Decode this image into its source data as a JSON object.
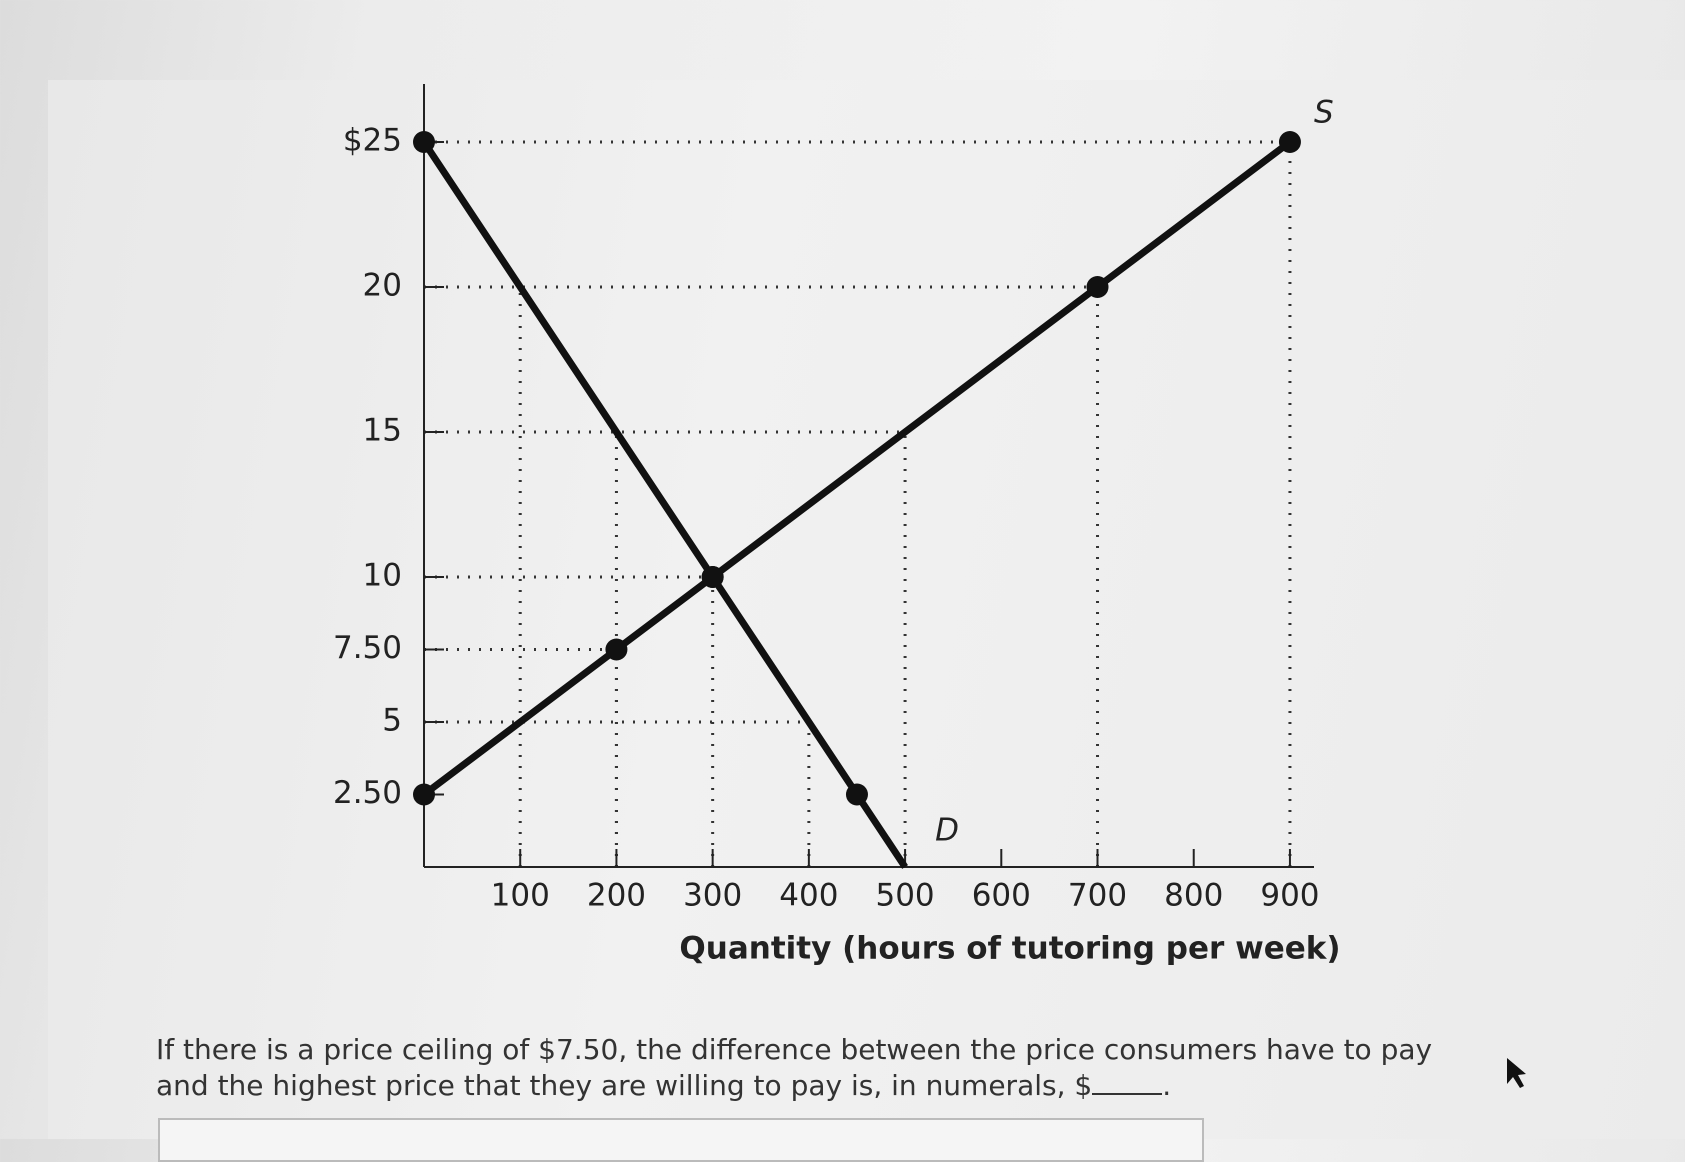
{
  "chart_data": {
    "type": "line",
    "xlabel": "Quantity (hours of tutoring per week)",
    "xlim": [
      0,
      925
    ],
    "ylim": [
      0,
      27
    ],
    "xticks": [
      100,
      200,
      300,
      400,
      500,
      600,
      700,
      800,
      900
    ],
    "yticks": [
      {
        "value": 25,
        "label": "$25"
      },
      20,
      15,
      10,
      {
        "value": 7.5,
        "label": "7.50"
      },
      5,
      {
        "value": 2.5,
        "label": "2.50"
      }
    ],
    "series": [
      {
        "name": "D",
        "color": "#111111",
        "x": [
          0,
          300,
          450,
          500
        ],
        "values": [
          25,
          10,
          2.5,
          0
        ],
        "markers": [
          true,
          true,
          true,
          false
        ]
      },
      {
        "name": "S",
        "color": "#111111",
        "x": [
          0,
          200,
          300,
          700,
          900
        ],
        "values": [
          2.5,
          7.5,
          10,
          20,
          25
        ],
        "markers": [
          true,
          true,
          true,
          true,
          true
        ]
      }
    ],
    "guides": [
      {
        "x": 100,
        "y": 20
      },
      {
        "x": 200,
        "y": 15
      },
      {
        "x": 200,
        "y": 7.5
      },
      {
        "x": 300,
        "y": 10
      },
      {
        "x": 400,
        "y": 5
      },
      {
        "x": 500,
        "y": 15
      },
      {
        "x": 700,
        "y": 20
      },
      {
        "x": 900,
        "y": 25
      }
    ]
  },
  "question": {
    "text": "If there is a price ceiling of $7.50, the difference between the price consumers have to pay and the highest price that they are willing to pay is, in numerals, $",
    "end": "."
  }
}
